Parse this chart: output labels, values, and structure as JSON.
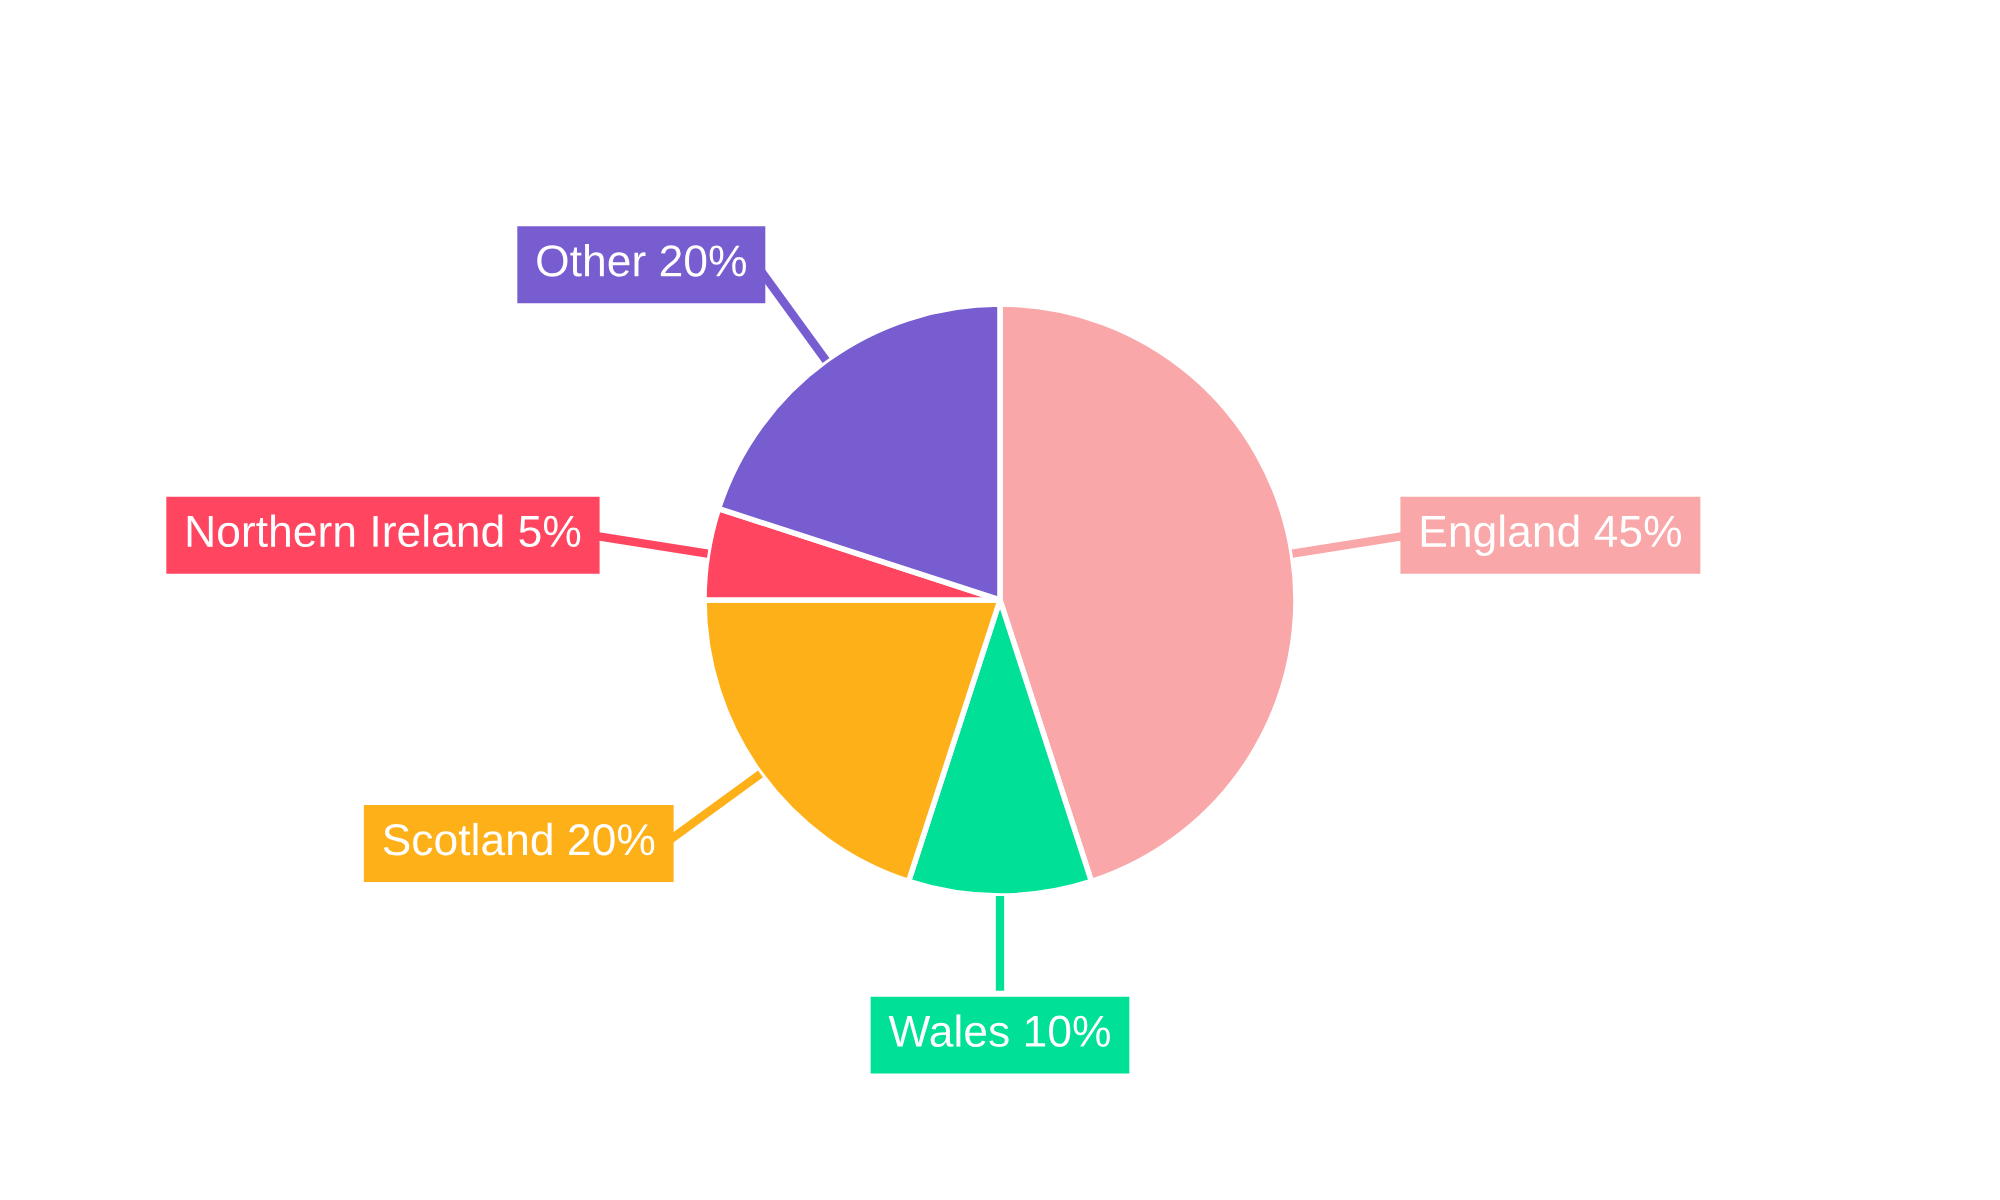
{
  "chart_data": {
    "type": "pie",
    "categories": [
      "England",
      "Wales",
      "Scotland",
      "Northern Ireland",
      "Other"
    ],
    "values": [
      45,
      10,
      20,
      5,
      20
    ],
    "value_labels": [
      "45%",
      "10%",
      "20%",
      "5%",
      "20%"
    ],
    "colors": [
      "#f9a7a8",
      "#00e096",
      "#feb019",
      "#ff4560",
      "#775dd0"
    ]
  }
}
